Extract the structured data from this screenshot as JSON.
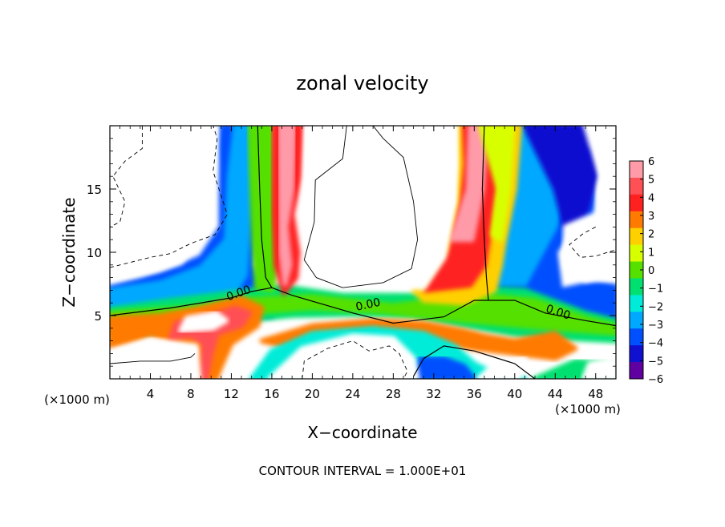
{
  "chart_data": {
    "type": "heatmap",
    "title": "zonal velocity",
    "xlabel": "X−coordinate",
    "ylabel": "Z−coordinate",
    "x_unit_label": "(×1000 m)",
    "x_unit_label_right": "(×1000 m)",
    "footer": "CONTOUR INTERVAL = 1.000E+01",
    "xlim": [
      0,
      50
    ],
    "ylim": [
      0,
      20
    ],
    "x_ticks": [
      4,
      8,
      12,
      16,
      20,
      24,
      28,
      32,
      36,
      40,
      44,
      48
    ],
    "x_tick_labels": [
      "4",
      "8",
      "12",
      "16",
      "20",
      "24",
      "28",
      "32",
      "36",
      "40",
      "44",
      "48"
    ],
    "y_ticks": [
      5,
      10,
      15
    ],
    "y_tick_labels": [
      "5",
      "10",
      "15"
    ],
    "grid": false,
    "colorbar": {
      "levels": [
        6,
        5,
        4,
        3,
        2,
        1,
        0,
        -1,
        -2,
        -3,
        -4,
        -5,
        -6
      ],
      "labels": [
        "6",
        "5",
        "4",
        "3",
        "2",
        "1",
        "0",
        "−1",
        "−2",
        "−3",
        "−4",
        "−5",
        "−6"
      ],
      "colors": [
        "#ff9aa8",
        "#ff5055",
        "#ff2020",
        "#ff7a00",
        "#ffd000",
        "#d8ff00",
        "#55e000",
        "#00e070",
        "#00ecd8",
        "#00a8ff",
        "#0050ff",
        "#1010d0",
        "#6000a0"
      ]
    },
    "contour_labels": [
      {
        "text": "0.00",
        "x": 12.7,
        "y": 6.8,
        "angle": -20
      },
      {
        "text": "0.00",
        "x": 25.5,
        "y": 5.9,
        "angle": -12
      },
      {
        "text": "0.00",
        "x": 44.3,
        "y": 5.3,
        "angle": 18
      }
    ]
  }
}
